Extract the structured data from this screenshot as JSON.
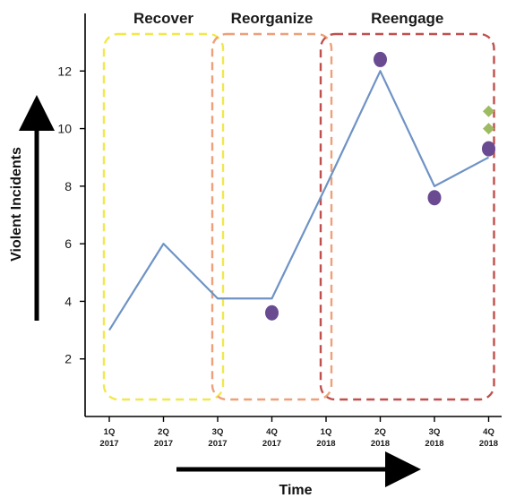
{
  "chart_data": {
    "type": "line",
    "xlabel": "Time",
    "ylabel": "Violent Incidents",
    "ylim": [
      0,
      14
    ],
    "yticks": [
      2,
      4,
      6,
      8,
      10,
      12
    ],
    "categories": [
      {
        "q": "1Q",
        "year": "2017"
      },
      {
        "q": "2Q",
        "year": "2017"
      },
      {
        "q": "3Q",
        "year": "2017"
      },
      {
        "q": "4Q",
        "year": "2017"
      },
      {
        "q": "1Q",
        "year": "2018"
      },
      {
        "q": "2Q",
        "year": "2018"
      },
      {
        "q": "3Q",
        "year": "2018"
      },
      {
        "q": "4Q",
        "year": "2018"
      }
    ],
    "series": [
      {
        "values": [
          3,
          6,
          4.1,
          4.1,
          8,
          12,
          8,
          9
        ],
        "color": "#6e93c5"
      }
    ],
    "point_markers": [
      {
        "category_index": 3,
        "y": 3.6,
        "shape": "circle",
        "color": "#6a4a91"
      },
      {
        "category_index": 5,
        "y": 12.4,
        "shape": "circle",
        "color": "#6a4a91"
      },
      {
        "category_index": 6,
        "y": 7.6,
        "shape": "circle",
        "color": "#6a4a91"
      },
      {
        "category_index": 7,
        "y": 9.3,
        "shape": "circle",
        "color": "#6a4a91"
      },
      {
        "category_index": 7,
        "y": 10.0,
        "shape": "diamond",
        "color": "#9dbb61"
      },
      {
        "category_index": 7,
        "y": 10.6,
        "shape": "diamond",
        "color": "#9dbb61"
      }
    ],
    "phases": [
      {
        "label": "Recover",
        "start_index": 0,
        "end_index": 2,
        "color": "#f2e84a"
      },
      {
        "label": "Reorganize",
        "start_index": 2,
        "end_index": 4,
        "color": "#eda07a"
      },
      {
        "label": "Reengage",
        "start_index": 4,
        "end_index": 7,
        "color": "#c0504d"
      }
    ],
    "grid": false
  }
}
